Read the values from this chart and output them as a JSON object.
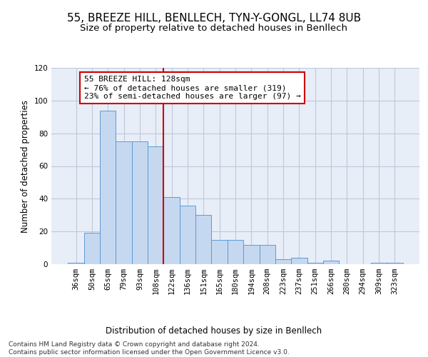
{
  "title": "55, BREEZE HILL, BENLLECH, TYN-Y-GONGL, LL74 8UB",
  "subtitle": "Size of property relative to detached houses in Benllech",
  "xlabel": "Distribution of detached houses by size in Benllech",
  "ylabel": "Number of detached properties",
  "categories": [
    "36sqm",
    "50sqm",
    "65sqm",
    "79sqm",
    "93sqm",
    "108sqm",
    "122sqm",
    "136sqm",
    "151sqm",
    "165sqm",
    "180sqm",
    "194sqm",
    "208sqm",
    "223sqm",
    "237sqm",
    "251sqm",
    "266sqm",
    "280sqm",
    "294sqm",
    "309sqm",
    "323sqm"
  ],
  "values": [
    1,
    19,
    94,
    75,
    75,
    72,
    41,
    36,
    30,
    15,
    15,
    12,
    12,
    3,
    4,
    1,
    2,
    0,
    0,
    1,
    1
  ],
  "bar_color": "#c5d8f0",
  "bar_edge_color": "#5b9bd5",
  "vline_x": 5.5,
  "vline_color": "#cc0000",
  "annotation_text": "55 BREEZE HILL: 128sqm\n← 76% of detached houses are smaller (319)\n23% of semi-detached houses are larger (97) →",
  "annotation_box_color": "#ffffff",
  "annotation_box_edge": "#cc0000",
  "ylim": [
    0,
    120
  ],
  "yticks": [
    0,
    20,
    40,
    60,
    80,
    100,
    120
  ],
  "grid_color": "#c0c8d8",
  "background_color": "#e8eef8",
  "footer_text": "Contains HM Land Registry data © Crown copyright and database right 2024.\nContains public sector information licensed under the Open Government Licence v3.0.",
  "title_fontsize": 11,
  "subtitle_fontsize": 9.5,
  "xlabel_fontsize": 8.5,
  "ylabel_fontsize": 8.5,
  "tick_fontsize": 7.5,
  "annotation_fontsize": 8,
  "footer_fontsize": 6.5
}
